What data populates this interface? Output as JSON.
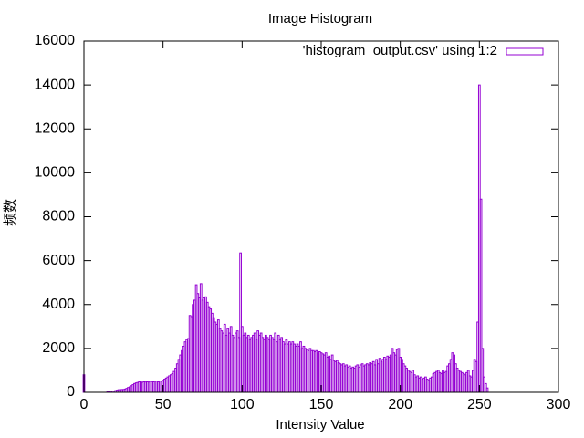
{
  "chart_data": {
    "type": "bar",
    "title": "Image Histogram",
    "x_label": "Intensity Value",
    "y_label": "频数",
    "legend_label": "'histogram_output.csv' using 1:2",
    "legend_position": "top-right",
    "color": "#9400d3",
    "xlim": [
      0,
      300
    ],
    "xticks": [
      0,
      50,
      100,
      150,
      200,
      250,
      300
    ],
    "ylim": [
      0,
      16000
    ],
    "yticks": [
      0,
      2000,
      4000,
      6000,
      8000,
      10000,
      12000,
      14000,
      16000
    ],
    "x": [
      0,
      1,
      2,
      3,
      4,
      5,
      6,
      7,
      8,
      9,
      10,
      11,
      12,
      13,
      14,
      15,
      16,
      17,
      18,
      19,
      20,
      21,
      22,
      23,
      24,
      25,
      26,
      27,
      28,
      29,
      30,
      31,
      32,
      33,
      34,
      35,
      36,
      37,
      38,
      39,
      40,
      41,
      42,
      43,
      44,
      45,
      46,
      47,
      48,
      49,
      50,
      51,
      52,
      53,
      54,
      55,
      56,
      57,
      58,
      59,
      60,
      61,
      62,
      63,
      64,
      65,
      66,
      67,
      68,
      69,
      70,
      71,
      72,
      73,
      74,
      75,
      76,
      77,
      78,
      79,
      80,
      81,
      82,
      83,
      84,
      85,
      86,
      87,
      88,
      89,
      90,
      91,
      92,
      93,
      94,
      95,
      96,
      97,
      98,
      99,
      100,
      101,
      102,
      103,
      104,
      105,
      106,
      107,
      108,
      109,
      110,
      111,
      112,
      113,
      114,
      115,
      116,
      117,
      118,
      119,
      120,
      121,
      122,
      123,
      124,
      125,
      126,
      127,
      128,
      129,
      130,
      131,
      132,
      133,
      134,
      135,
      136,
      137,
      138,
      139,
      140,
      141,
      142,
      143,
      144,
      145,
      146,
      147,
      148,
      149,
      150,
      151,
      152,
      153,
      154,
      155,
      156,
      157,
      158,
      159,
      160,
      161,
      162,
      163,
      164,
      165,
      166,
      167,
      168,
      169,
      170,
      171,
      172,
      173,
      174,
      175,
      176,
      177,
      178,
      179,
      180,
      181,
      182,
      183,
      184,
      185,
      186,
      187,
      188,
      189,
      190,
      191,
      192,
      193,
      194,
      195,
      196,
      197,
      198,
      199,
      200,
      201,
      202,
      203,
      204,
      205,
      206,
      207,
      208,
      209,
      210,
      211,
      212,
      213,
      214,
      215,
      216,
      217,
      218,
      219,
      220,
      221,
      222,
      223,
      224,
      225,
      226,
      227,
      228,
      229,
      230,
      231,
      232,
      233,
      234,
      235,
      236,
      237,
      238,
      239,
      240,
      241,
      242,
      243,
      244,
      245,
      246,
      247,
      248,
      249,
      250,
      251,
      252,
      253,
      254,
      255
    ],
    "values": [
      800,
      0,
      0,
      0,
      0,
      0,
      0,
      0,
      0,
      0,
      0,
      0,
      0,
      0,
      0,
      30,
      40,
      50,
      60,
      60,
      80,
      100,
      120,
      120,
      130,
      130,
      150,
      180,
      220,
      250,
      300,
      350,
      400,
      430,
      450,
      480,
      470,
      460,
      480,
      470,
      480,
      470,
      500,
      490,
      480,
      500,
      510,
      480,
      520,
      500,
      550,
      600,
      650,
      700,
      750,
      800,
      850,
      950,
      1100,
      1300,
      1500,
      1700,
      1900,
      2100,
      2300,
      2400,
      2450,
      3500,
      3450,
      4000,
      4200,
      4900,
      4500,
      4300,
      4950,
      4200,
      4300,
      4350,
      4100,
      3900,
      3800,
      3600,
      3400,
      3200,
      3100,
      3300,
      2900,
      2800,
      2700,
      3100,
      2600,
      2900,
      2700,
      3000,
      2600,
      2500,
      2700,
      2800,
      2500,
      6350,
      3000,
      2600,
      2700,
      2500,
      2600,
      2400,
      2500,
      2600,
      2700,
      2400,
      2800,
      2600,
      2700,
      2500,
      2400,
      2600,
      2500,
      2400,
      2600,
      2500,
      2400,
      2700,
      2300,
      2600,
      2400,
      2500,
      2300,
      2200,
      2400,
      2200,
      2300,
      2200,
      2300,
      2200,
      2100,
      2200,
      2100,
      2300,
      2000,
      2100,
      2000,
      1950,
      1900,
      2000,
      1900,
      1900,
      1850,
      1900,
      1800,
      1850,
      1800,
      1750,
      1700,
      1800,
      1600,
      1650,
      1500,
      1700,
      1450,
      1400,
      1450,
      1350,
      1300,
      1250,
      1300,
      1200,
      1250,
      1150,
      1200,
      1100,
      1150,
      1100,
      1200,
      1250,
      1150,
      1250,
      1300,
      1200,
      1250,
      1300,
      1250,
      1350,
      1300,
      1400,
      1250,
      1500,
      1300,
      1550,
      1400,
      1500,
      1600,
      1500,
      1650,
      1600,
      1700,
      2000,
      1800,
      1700,
      1950,
      2000,
      1600,
      1500,
      1300,
      1200,
      1100,
      1000,
      950,
      900,
      1000,
      800,
      700,
      750,
      650,
      700,
      600,
      650,
      700,
      600,
      550,
      650,
      700,
      850,
      900,
      950,
      1000,
      900,
      850,
      1000,
      900,
      950,
      1200,
      1300,
      1500,
      1800,
      1700,
      1300,
      1100,
      1000,
      950,
      900,
      850,
      800,
      900,
      1000,
      750,
      700,
      1000,
      1500,
      1400,
      3200,
      14000,
      8800,
      2000,
      700,
      400,
      200
    ]
  }
}
